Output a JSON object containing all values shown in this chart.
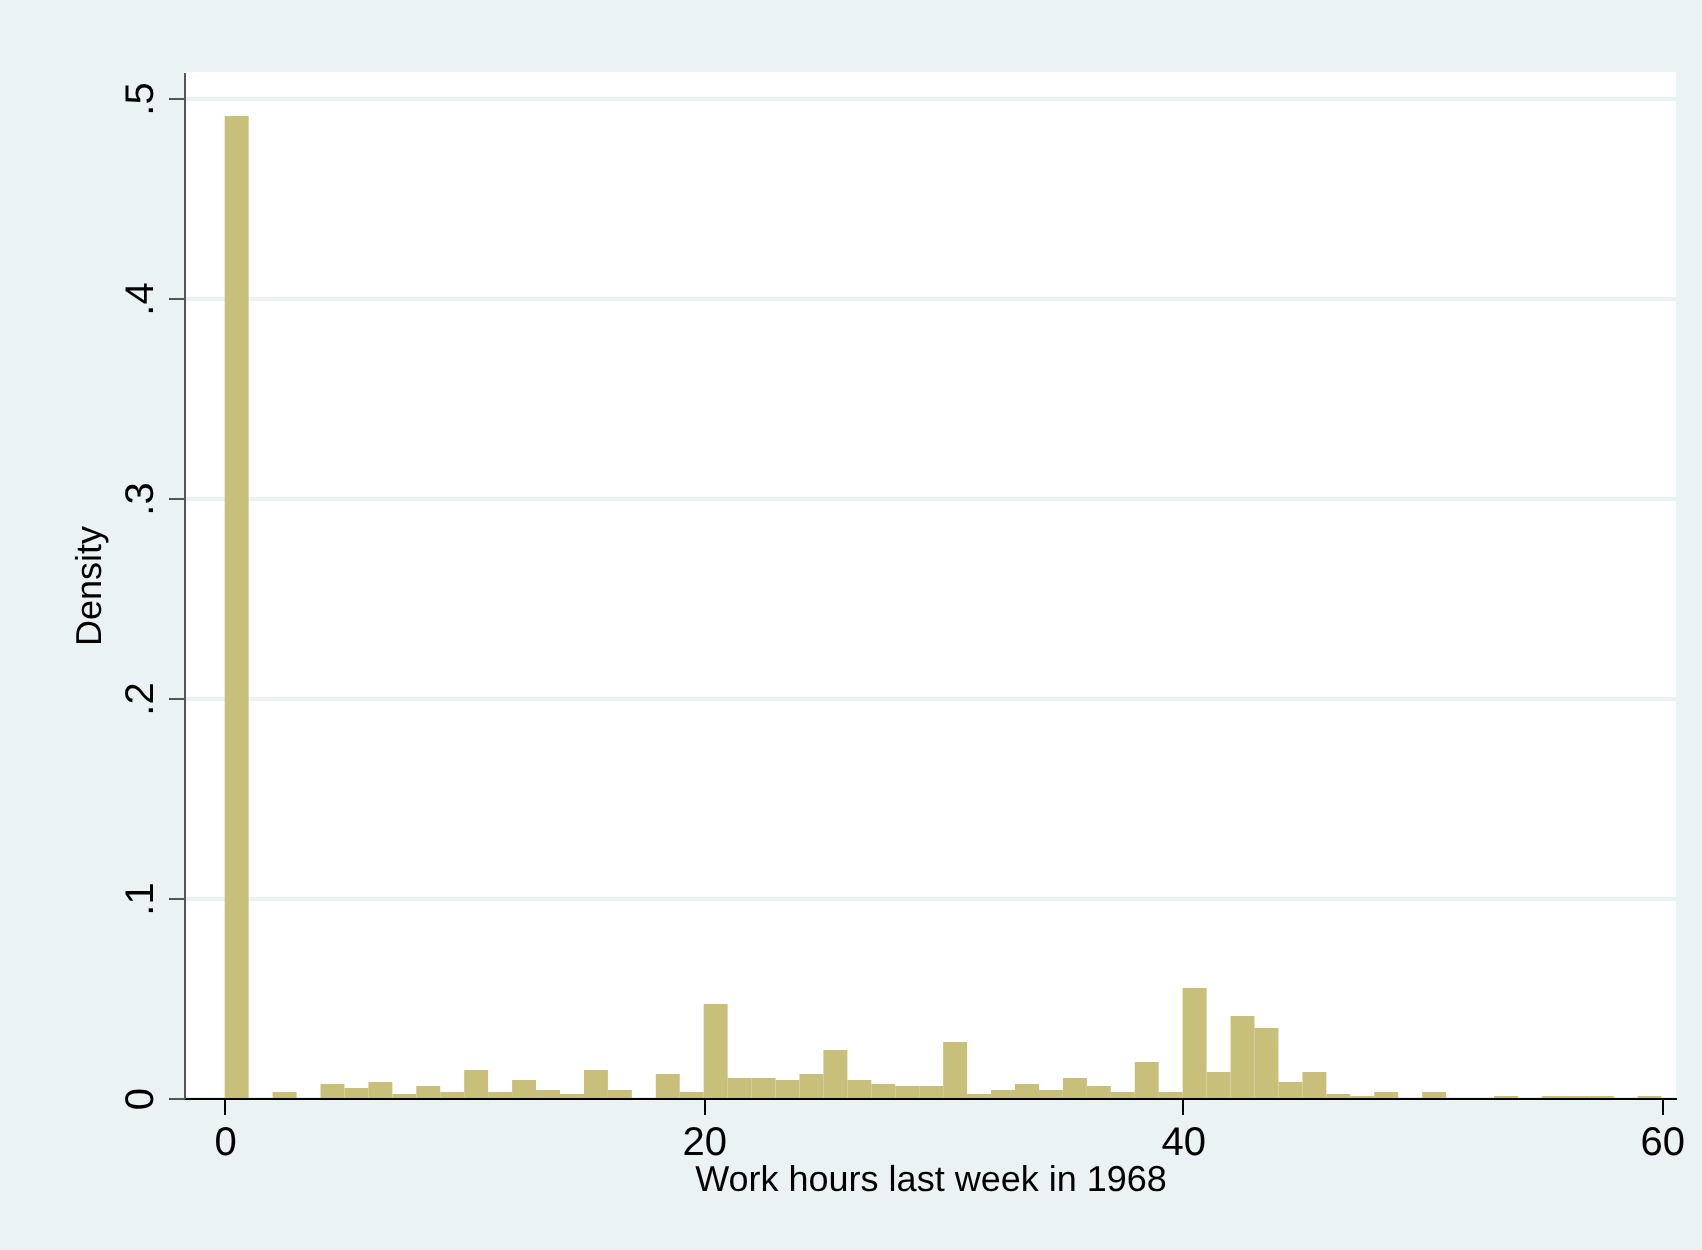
{
  "chart_data": {
    "type": "histogram",
    "xlabel": "Work hours last week in 1968",
    "ylabel": "Density",
    "bins": [
      0,
      1,
      2,
      3,
      4,
      5,
      6,
      7,
      8,
      9,
      10,
      11,
      12,
      13,
      14,
      15,
      16,
      17,
      18,
      19,
      20,
      21,
      22,
      23,
      24,
      25,
      26,
      27,
      28,
      29,
      30,
      31,
      32,
      33,
      34,
      35,
      36,
      37,
      38,
      39,
      40,
      41,
      42,
      43,
      44,
      45,
      46,
      47,
      48,
      49,
      50,
      51,
      52,
      53,
      54,
      55,
      56,
      57,
      58,
      59,
      60
    ],
    "values": [
      0.491,
      0,
      0.003,
      0,
      0.007,
      0.005,
      0.008,
      0.002,
      0.006,
      0.003,
      0.014,
      0.003,
      0.009,
      0.004,
      0.002,
      0.014,
      0.004,
      0,
      0.012,
      0.003,
      0.047,
      0.01,
      0.01,
      0.009,
      0.012,
      0.024,
      0.009,
      0.007,
      0.006,
      0.006,
      0.028,
      0.002,
      0.004,
      0.007,
      0.004,
      0.01,
      0.006,
      0.003,
      0.018,
      0.003,
      0.055,
      0.013,
      0.041,
      0.035,
      0.008,
      0.013,
      0.002,
      0.001,
      0.003,
      0,
      0.003,
      0,
      0,
      0.001,
      0,
      0.001,
      0.001,
      0.001,
      0,
      0.001
    ],
    "color": "#c8bf7a",
    "xlim": [
      -1.7,
      60.6
    ],
    "xticks": [
      0,
      20,
      40,
      60
    ],
    "ylim": [
      0,
      0.513
    ],
    "yticks": [
      0,
      {
        "value": 0.1,
        "label": ".1"
      },
      {
        "value": 0.2,
        "label": ".2"
      },
      {
        "value": 0.3,
        "label": ".3"
      },
      {
        "value": 0.4,
        "label": ".4"
      },
      {
        "value": 0.5,
        "label": ".5"
      }
    ],
    "grid": "y"
  }
}
